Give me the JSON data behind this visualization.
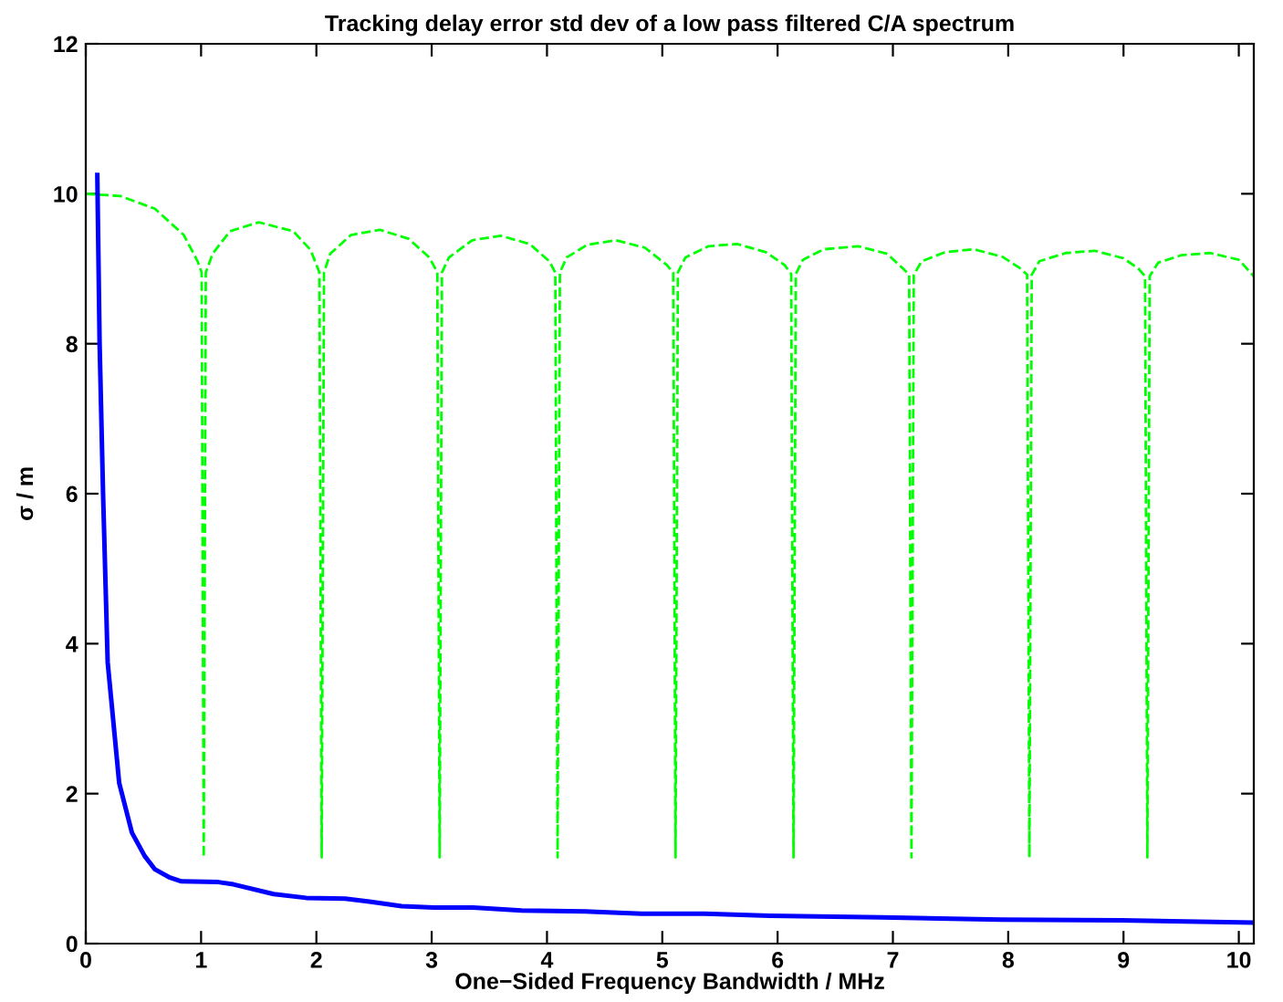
{
  "chart_data": {
    "type": "line",
    "title": "Tracking delay error std dev of a low pass filtered C/A spectrum",
    "xlabel": "One−Sided Frequency Bandwidth / MHz",
    "ylabel": "σ / m",
    "xlim": [
      0,
      10.13
    ],
    "ylim": [
      0,
      12
    ],
    "xticks": [
      0,
      1,
      2,
      3,
      4,
      5,
      6,
      7,
      8,
      9,
      10
    ],
    "yticks": [
      0,
      2,
      4,
      6,
      8,
      10,
      12
    ],
    "grid": false,
    "legend": false,
    "series": [
      {
        "color": "#00ff00",
        "line_style": "dashed",
        "x": [
          0,
          0.3,
          0.6,
          0.85,
          0.97,
          1.005,
          1.023,
          1.041,
          1.1,
          1.25,
          1.5,
          1.8,
          1.95,
          2.026,
          2.046,
          2.066,
          2.12,
          2.3,
          2.55,
          2.8,
          2.98,
          3.049,
          3.069,
          3.089,
          3.15,
          3.35,
          3.6,
          3.85,
          4.02,
          4.072,
          4.092,
          4.112,
          4.17,
          4.35,
          4.6,
          4.85,
          5.04,
          5.095,
          5.115,
          5.135,
          5.2,
          5.4,
          5.65,
          5.9,
          6.06,
          6.118,
          6.138,
          6.158,
          6.22,
          6.4,
          6.7,
          6.95,
          7.09,
          7.141,
          7.161,
          7.181,
          7.25,
          7.45,
          7.7,
          7.95,
          8.11,
          8.164,
          8.184,
          8.204,
          8.27,
          8.5,
          8.75,
          9.0,
          9.13,
          9.187,
          9.207,
          9.227,
          9.3,
          9.5,
          9.75,
          10.0,
          10.13
        ],
        "values": [
          10,
          9.97,
          9.8,
          9.45,
          9.1,
          8.95,
          1.15,
          8.95,
          9.2,
          9.5,
          9.62,
          9.5,
          9.25,
          8.95,
          1.15,
          8.95,
          9.2,
          9.45,
          9.52,
          9.4,
          9.15,
          8.95,
          1.15,
          8.95,
          9.15,
          9.38,
          9.44,
          9.33,
          9.1,
          8.95,
          1.15,
          8.95,
          9.15,
          9.32,
          9.38,
          9.28,
          9.05,
          8.95,
          1.15,
          8.95,
          9.15,
          9.3,
          9.33,
          9.22,
          9.05,
          8.93,
          1.15,
          8.93,
          9.12,
          9.26,
          9.3,
          9.2,
          9.0,
          8.92,
          1.15,
          8.92,
          9.1,
          9.22,
          9.26,
          9.16,
          9.0,
          8.92,
          1.15,
          8.92,
          9.1,
          9.21,
          9.24,
          9.14,
          9.0,
          8.9,
          1.15,
          8.9,
          9.08,
          9.18,
          9.21,
          9.12,
          8.9
        ]
      },
      {
        "color": "#0000ff",
        "line_style": "solid",
        "x": [
          0.1,
          0.12,
          0.15,
          0.19,
          0.29,
          0.4,
          0.51,
          0.6,
          0.73,
          0.83,
          1.15,
          1.28,
          1.63,
          1.91,
          2.25,
          2.46,
          2.74,
          3.02,
          3.36,
          3.78,
          4.33,
          4.82,
          5.37,
          5.93,
          6.9,
          7.94,
          8.98,
          10.12
        ],
        "values": [
          10.25,
          8,
          6,
          3.75,
          2.14,
          1.48,
          1.17,
          0.99,
          0.88,
          0.83,
          0.82,
          0.79,
          0.66,
          0.61,
          0.6,
          0.56,
          0.5,
          0.48,
          0.48,
          0.44,
          0.43,
          0.4,
          0.4,
          0.37,
          0.35,
          0.32,
          0.31,
          0.28
        ]
      }
    ]
  }
}
